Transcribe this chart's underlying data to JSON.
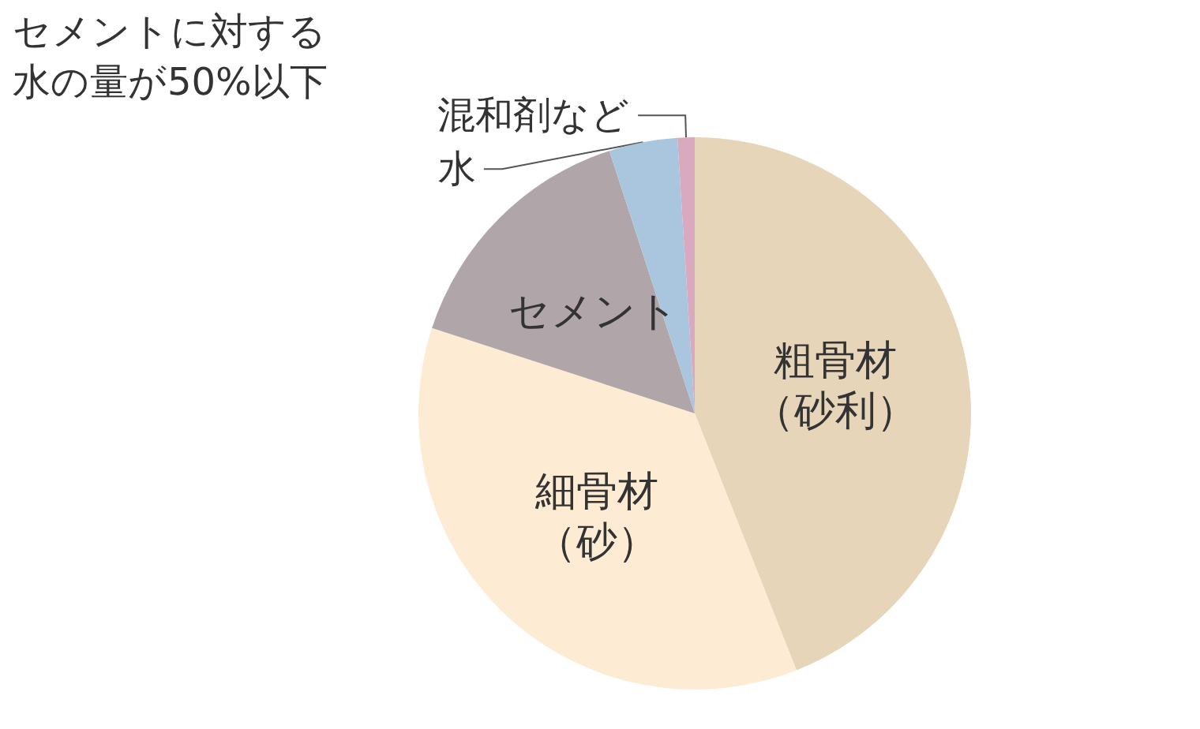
{
  "chart_data": {
    "type": "pie",
    "categories": [
      "粗骨材（砂利）",
      "細骨材（砂）",
      "セメント",
      "水",
      "混和剤など"
    ],
    "values": [
      44,
      36,
      15,
      4,
      1
    ],
    "colors": [
      "#e6d5b8",
      "#fdebd3",
      "#b0a6a9",
      "#a9c6de",
      "#d9a9c0"
    ],
    "annotations": [
      "セメントに対する水の量が50%以下"
    ]
  }
}
